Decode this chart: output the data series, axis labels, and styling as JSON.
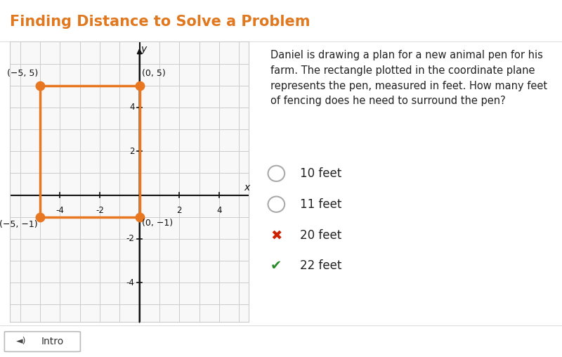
{
  "title": "Finding Distance to Solve a Problem",
  "title_color": "#E07820",
  "bg_color": "#ffffff",
  "graph_bg": "#f8f8f8",
  "grid_color": "#cccccc",
  "axis_color": "#111111",
  "rect_color": "#E87722",
  "rect_points": [
    [
      -5,
      -1
    ],
    [
      0,
      -1
    ],
    [
      0,
      5
    ],
    [
      -5,
      5
    ]
  ],
  "dot_color": "#E87722",
  "dot_points": [
    [
      -5,
      5
    ],
    [
      0,
      5
    ],
    [
      0,
      -1
    ],
    [
      -5,
      -1
    ]
  ],
  "xlim": [
    -6.5,
    5.5
  ],
  "ylim": [
    -5.8,
    7.0
  ],
  "xticks": [
    -4,
    -2,
    2,
    4
  ],
  "yticks": [
    -4,
    -2,
    2,
    4
  ],
  "question_text": "Daniel is drawing a plan for a new animal pen for his\nfarm. The rectangle plotted in the coordinate plane\nrepresents the pen, measured in feet. How many feet\nof fencing does he need to surround the pen?",
  "choices": [
    {
      "text": "10 feet",
      "marker": "circle",
      "color": "#aaaaaa"
    },
    {
      "text": "11 feet",
      "marker": "circle",
      "color": "#aaaaaa"
    },
    {
      "text": "20 feet",
      "marker": "x",
      "color": "#cc2200"
    },
    {
      "text": "22 feet",
      "marker": "check",
      "color": "#2a8a2a"
    }
  ],
  "footer_text": "Intro",
  "title_fontsize": 15,
  "question_fontsize": 10.5,
  "choice_fontsize": 12
}
